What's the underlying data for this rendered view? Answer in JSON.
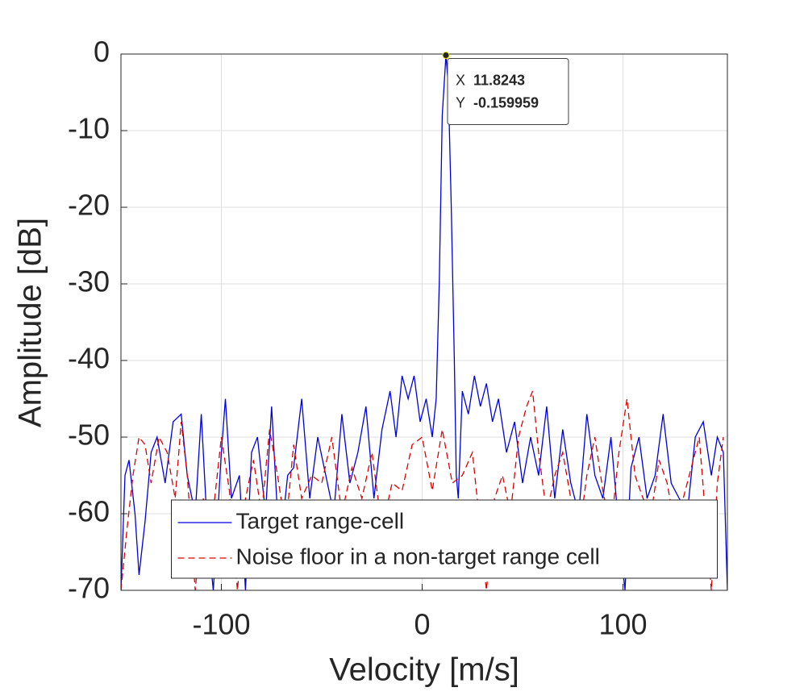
{
  "chart_data": {
    "type": "line",
    "xlabel": "Velocity [m/s]",
    "ylabel": "Amplitude [dB]",
    "xlim": [
      -150,
      152
    ],
    "ylim": [
      -70,
      0
    ],
    "xticks": [
      -100,
      0,
      100
    ],
    "yticks": [
      -70,
      -60,
      -50,
      -40,
      -30,
      -20,
      -10,
      0
    ],
    "grid": true,
    "legend": "lower center",
    "series": [
      {
        "name": "Target range-cell",
        "color": "#0000e0",
        "dash": "solid",
        "x": [
          -150,
          -148,
          -146,
          -143,
          -141,
          -138,
          -135,
          -132,
          -128,
          -124,
          -120,
          -117,
          -113,
          -110,
          -107,
          -104,
          -100,
          -98,
          -95,
          -91,
          -88,
          -85,
          -82,
          -78,
          -75,
          -71,
          -67,
          -64,
          -60,
          -56,
          -52,
          -48,
          -44,
          -40,
          -36,
          -32,
          -28,
          -24,
          -20,
          -16,
          -13,
          -10,
          -7,
          -4,
          -1,
          2,
          5,
          7,
          8.5,
          10,
          11.8243,
          13,
          14.5,
          16,
          17,
          18,
          20,
          23,
          26,
          29,
          32,
          35,
          38,
          42,
          46,
          50,
          54,
          58,
          62,
          66,
          70,
          74,
          78,
          82,
          86,
          90,
          94,
          98,
          101,
          104,
          108,
          112,
          116,
          120,
          124,
          128,
          132,
          136,
          140,
          144,
          147,
          150,
          152
        ],
        "values": [
          -70,
          -55,
          -53,
          -60,
          -68,
          -61,
          -52,
          -50,
          -56,
          -48,
          -47,
          -55,
          -60,
          -47,
          -62,
          -70,
          -52,
          -45,
          -58,
          -55,
          -70,
          -52,
          -50,
          -60,
          -46,
          -65,
          -55,
          -54,
          -45,
          -58,
          -50,
          -55,
          -60,
          -47,
          -56,
          -52,
          -46,
          -58,
          -49,
          -44,
          -50,
          -42,
          -45,
          -42,
          -48,
          -45,
          -50,
          -45,
          -30,
          -8,
          -0.159959,
          -4,
          -20,
          -40,
          -55,
          -58,
          -44,
          -47,
          -42,
          -46,
          -43,
          -48,
          -45,
          -52,
          -48,
          -56,
          -50,
          -55,
          -46,
          -58,
          -49,
          -56,
          -60,
          -47,
          -55,
          -58,
          -50,
          -62,
          -70,
          -54,
          -50,
          -58,
          -55,
          -47,
          -56,
          -58,
          -60,
          -50,
          -48,
          -55,
          -50,
          -52,
          -70
        ]
      },
      {
        "name": "Noise floor in a non-target range cell",
        "color": "#e00000",
        "dash": "dashed",
        "x": [
          -150,
          -147,
          -144,
          -141,
          -138,
          -135,
          -131,
          -127,
          -123,
          -120,
          -117,
          -113,
          -109,
          -105,
          -100,
          -96,
          -92,
          -88,
          -84,
          -80,
          -76,
          -72,
          -68,
          -64,
          -60,
          -55,
          -50,
          -45,
          -40,
          -35,
          -30,
          -25,
          -20,
          -15,
          -10,
          -5,
          0,
          5,
          10,
          15,
          20,
          25,
          29,
          32,
          36,
          40,
          44,
          48,
          52,
          55,
          58,
          62,
          66,
          70,
          74,
          78,
          82,
          86,
          90,
          94,
          98,
          102,
          106,
          110,
          114,
          118,
          122,
          126,
          130,
          134,
          138,
          141,
          144,
          147,
          150
        ],
        "values": [
          -70,
          -62,
          -55,
          -50,
          -51,
          -56,
          -50,
          -52,
          -58,
          -48,
          -55,
          -70,
          -58,
          -62,
          -50,
          -57,
          -70,
          -58,
          -53,
          -60,
          -49,
          -55,
          -62,
          -51,
          -58,
          -55,
          -56,
          -50,
          -60,
          -54,
          -58,
          -52,
          -62,
          -56,
          -57,
          -51,
          -50,
          -57,
          -49,
          -56,
          -55,
          -52,
          -62,
          -70,
          -58,
          -55,
          -60,
          -50,
          -46,
          -44,
          -52,
          -60,
          -55,
          -52,
          -58,
          -63,
          -55,
          -50,
          -57,
          -62,
          -52,
          -45,
          -55,
          -58,
          -60,
          -53,
          -56,
          -62,
          -58,
          -54,
          -50,
          -60,
          -70,
          -56,
          -50
        ]
      }
    ],
    "datatip": {
      "x_label": "X",
      "x": 11.8243,
      "y_label": "Y",
      "y": -0.159959
    }
  }
}
